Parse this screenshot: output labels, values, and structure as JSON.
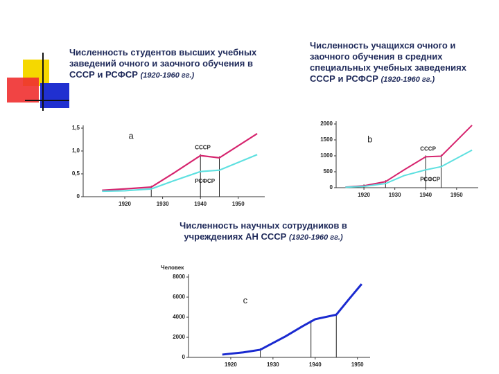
{
  "chart_data": [
    {
      "type": "line",
      "title": "Численность студентов высших учебных заведений очного и заочного обучения в СССР и РСФСР",
      "subtitle": "(1920-1960 гг.)",
      "panel_label": "а",
      "x": [
        1914,
        1920,
        1927,
        1933,
        1940,
        1945,
        1955
      ],
      "series": [
        {
          "name": "СССР",
          "color": "#d6246e",
          "values": [
            0.14,
            0.17,
            0.21,
            0.52,
            0.9,
            0.85,
            1.38
          ]
        },
        {
          "name": "РСФСР",
          "color": "#5ee0e0",
          "values": [
            0.12,
            0.13,
            0.17,
            0.35,
            0.55,
            0.58,
            0.92
          ]
        }
      ],
      "drop_lines": [
        1927,
        1940,
        1945
      ],
      "xlim": [
        1909,
        1957
      ],
      "xticks": [
        1920,
        1930,
        1940,
        1950
      ],
      "ylim": [
        0,
        1.5
      ],
      "yticks": [
        0,
        {
          "value": 0.5,
          "label": "0,5"
        },
        {
          "value": 1.0,
          "label": "1,0"
        },
        {
          "value": 1.5,
          "label": "1,5"
        }
      ]
    },
    {
      "type": "line",
      "title": "Численность учащихся очного и заочного обучения в средних специальных учебных заведениях СССР и РСФСР",
      "subtitle": "(1920-1960 гг.)",
      "panel_label": "b",
      "x": [
        1914,
        1920,
        1927,
        1933,
        1940,
        1945,
        1955
      ],
      "series": [
        {
          "name": "СССР",
          "color": "#d6246e",
          "values": [
            20,
            60,
            190,
            560,
            970,
            990,
            1960
          ]
        },
        {
          "name": "РСФСР",
          "color": "#5ee0e0",
          "values": [
            15,
            40,
            130,
            380,
            560,
            660,
            1180
          ]
        }
      ],
      "drop_lines": [
        1920,
        1927,
        1940,
        1945
      ],
      "xlim": [
        1911,
        1957
      ],
      "xticks": [
        1920,
        1930,
        1940,
        1950
      ],
      "ylim": [
        0,
        2000
      ],
      "yticks": [
        0,
        500,
        1000,
        1500,
        2000
      ]
    },
    {
      "type": "line",
      "title": "Численность научных сотрудников в учреждениях АН СССР",
      "subtitle": "(1920-1960 гг.)",
      "panel_label": "с",
      "y_label": "Человек",
      "x": [
        1918,
        1923,
        1927,
        1933,
        1937,
        1940,
        1945,
        1948,
        1951
      ],
      "series": [
        {
          "color": "#1a2ad0",
          "values": [
            280,
            500,
            760,
            2100,
            3100,
            3800,
            4250,
            5800,
            7300
          ]
        }
      ],
      "drop_lines": [
        1927,
        1939,
        1945
      ],
      "xlim": [
        1910,
        1953
      ],
      "xticks": [
        1920,
        1930,
        1940,
        1950
      ],
      "ylim": [
        0,
        8000
      ],
      "yticks": [
        0,
        2000,
        4000,
        6000,
        8000
      ]
    }
  ]
}
